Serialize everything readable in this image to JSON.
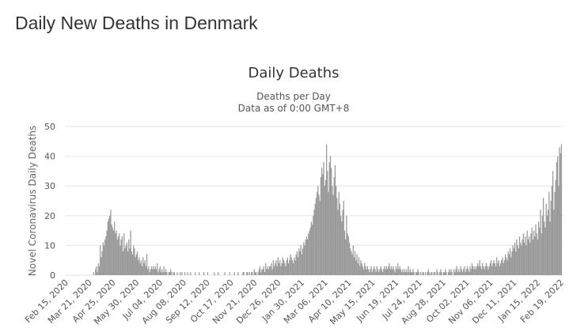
{
  "page": {
    "title": "Daily New Deaths in Denmark"
  },
  "chart_data": {
    "type": "bar",
    "title": "Daily Deaths",
    "subtitle_line1": "Deaths per Day",
    "subtitle_line2": "Data as of 0:00 GMT+8",
    "xlabel": "",
    "ylabel": "Novel Coronavirus Daily Deaths",
    "ylim": [
      0,
      50
    ],
    "yticks": [
      0,
      10,
      20,
      30,
      40,
      50
    ],
    "grid": true,
    "bar_color": "#999999",
    "x_start": "2020-02-15",
    "x_end": "2022-02-19",
    "xtick_labels": [
      "Feb 15, 2020",
      "Mar 21, 2020",
      "Apr 25, 2020",
      "May 30, 2020",
      "Jul 04, 2020",
      "Aug 08, 2020",
      "Sep 12, 2020",
      "Oct 17, 2020",
      "Nov 21, 2020",
      "Dec 26, 2020",
      "Jan 30, 2021",
      "Mar 06, 2021",
      "Apr 10, 2021",
      "May 15, 2021",
      "Jun 19, 2021",
      "Jul 24, 2021",
      "Aug 28, 2021",
      "Oct 02, 2021",
      "Nov 06, 2021",
      "Dec 11, 2021",
      "Jan 15, 2022",
      "Feb 19, 2022"
    ],
    "daily_values": [
      0,
      0,
      0,
      0,
      0,
      0,
      0,
      0,
      0,
      0,
      0,
      0,
      0,
      0,
      0,
      0,
      0,
      0,
      0,
      0,
      0,
      0,
      0,
      0,
      0,
      0,
      0,
      0,
      1,
      0,
      2,
      3,
      1,
      4,
      3,
      10,
      6,
      8,
      11,
      10,
      12,
      13,
      15,
      18,
      19,
      20,
      22,
      17,
      16,
      15,
      18,
      14,
      15,
      12,
      13,
      14,
      10,
      12,
      13,
      8,
      14,
      9,
      10,
      11,
      8,
      12,
      9,
      15,
      8,
      7,
      10,
      9,
      6,
      7,
      8,
      5,
      6,
      4,
      5,
      3,
      6,
      4,
      5,
      3,
      7,
      2,
      3,
      1,
      2,
      3,
      2,
      3,
      2,
      3,
      2,
      4,
      1,
      2,
      3,
      1,
      2,
      1,
      3,
      1,
      2,
      1,
      0,
      1,
      1,
      2,
      1,
      0,
      1,
      1,
      0,
      0,
      1,
      0,
      0,
      1,
      0,
      1,
      0,
      0,
      1,
      0,
      0,
      1,
      0,
      0,
      1,
      0,
      0,
      0,
      0,
      1,
      0,
      0,
      0,
      1,
      0,
      0,
      0,
      0,
      1,
      0,
      0,
      0,
      1,
      0,
      0,
      0,
      0,
      0,
      0,
      1,
      0,
      0,
      0,
      1,
      0,
      0,
      0,
      0,
      0,
      0,
      1,
      0,
      0,
      0,
      0,
      1,
      0,
      0,
      0,
      0,
      1,
      0,
      0,
      0,
      1,
      0,
      0,
      0,
      0,
      1,
      1,
      0,
      0,
      1,
      1,
      0,
      1,
      0,
      1,
      1,
      0,
      2,
      1,
      1,
      0,
      1,
      2,
      3,
      1,
      2,
      2,
      3,
      1,
      4,
      2,
      3,
      2,
      3,
      3,
      4,
      2,
      5,
      3,
      4,
      5,
      3,
      6,
      4,
      5,
      3,
      4,
      6,
      5,
      4,
      3,
      5,
      6,
      4,
      5,
      7,
      6,
      5,
      4,
      6,
      5,
      7,
      8,
      6,
      9,
      8,
      10,
      7,
      9,
      11,
      10,
      12,
      13,
      12,
      14,
      15,
      16,
      18,
      17,
      20,
      22,
      24,
      26,
      28,
      30,
      27,
      25,
      33,
      36,
      34,
      38,
      30,
      32,
      44,
      35,
      28,
      38,
      40,
      36,
      30,
      27,
      33,
      37,
      30,
      26,
      22,
      28,
      24,
      20,
      18,
      22,
      25,
      15,
      12,
      20,
      14,
      13,
      11,
      9,
      8,
      7,
      10,
      6,
      8,
      5,
      7,
      4,
      6,
      3,
      5,
      4,
      3,
      2,
      4,
      3,
      2,
      3,
      2,
      1,
      2,
      3,
      1,
      2,
      3,
      2,
      1,
      3,
      2,
      1,
      2,
      3,
      2,
      1,
      2,
      3,
      2,
      3,
      2,
      3,
      4,
      2,
      3,
      2,
      3,
      2,
      1,
      3,
      2,
      4,
      2,
      3,
      2,
      1,
      2,
      1,
      2,
      1,
      2,
      1,
      3,
      1,
      2,
      1,
      1,
      2,
      1,
      0,
      1,
      1,
      2,
      1,
      0,
      1,
      0,
      1,
      1,
      0,
      1,
      0,
      1,
      2,
      1,
      0,
      1,
      1,
      0,
      1,
      1,
      0,
      2,
      1,
      0,
      1,
      2,
      1,
      0,
      1,
      1,
      2,
      1,
      0,
      1,
      2,
      1,
      2,
      1,
      0,
      2,
      1,
      2,
      3,
      1,
      2,
      1,
      3,
      2,
      1,
      2,
      3,
      1,
      2,
      3,
      2,
      1,
      3,
      2,
      4,
      3,
      2,
      3,
      2,
      3,
      4,
      3,
      5,
      3,
      2,
      4,
      3,
      2,
      3,
      4,
      3,
      2,
      3,
      4,
      5,
      3,
      4,
      5,
      4,
      3,
      6,
      4,
      5,
      3,
      4,
      5,
      6,
      4,
      5,
      7,
      6,
      5,
      8,
      7,
      9,
      6,
      8,
      10,
      9,
      11,
      8,
      12,
      10,
      9,
      13,
      11,
      10,
      12,
      14,
      11,
      13,
      10,
      15,
      12,
      13,
      11,
      14,
      16,
      12,
      15,
      13,
      17,
      14,
      12,
      18,
      16,
      22,
      14,
      20,
      26,
      18,
      16,
      24,
      20,
      22,
      28,
      18,
      25,
      30,
      35,
      22,
      28,
      32,
      38,
      40,
      30,
      43,
      41,
      44
    ]
  }
}
